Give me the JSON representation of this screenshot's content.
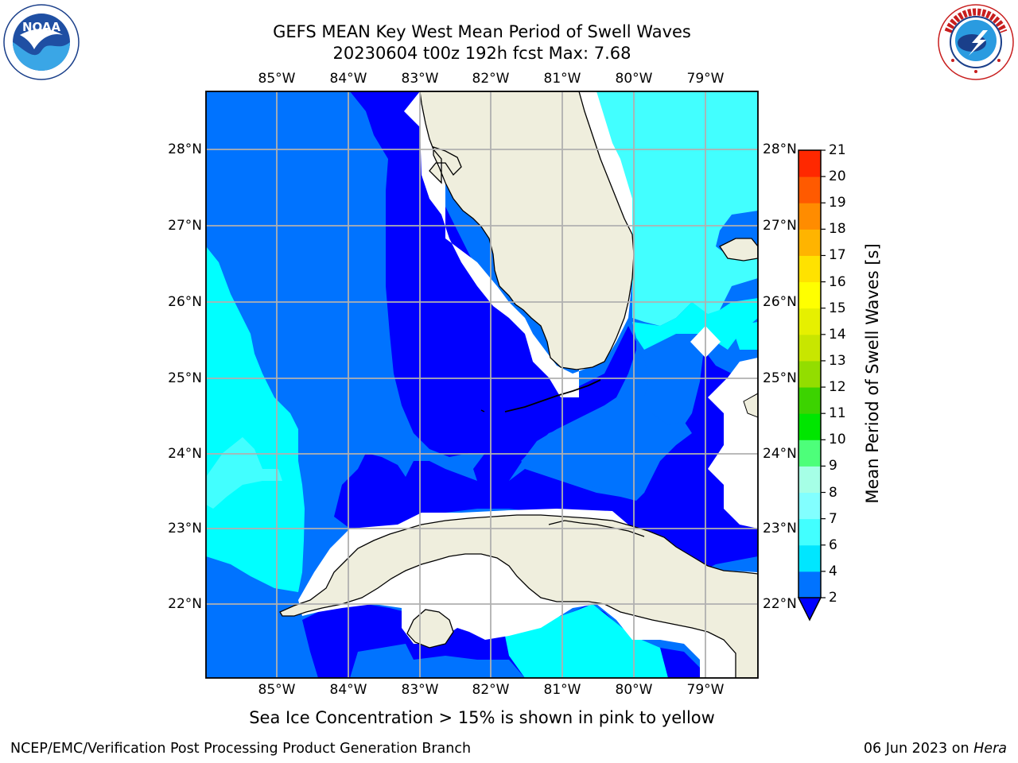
{
  "title_line1": "GEFS MEAN Key West Mean Period of Swell Waves",
  "title_line2": "20230604 t00z 192h fcst   Max: 7.68",
  "longitude_ticks": [
    "85°W",
    "84°W",
    "83°W",
    "82°W",
    "81°W",
    "80°W",
    "79°W"
  ],
  "latitude_ticks": [
    "28°N",
    "27°N",
    "26°N",
    "25°N",
    "24°N",
    "23°N",
    "22°N"
  ],
  "colorbar": {
    "label": "Mean Period of Swell Waves [s]",
    "ticks": [
      "2",
      "4",
      "6",
      "7",
      "8",
      "9",
      "10",
      "11",
      "12",
      "13",
      "14",
      "15",
      "16",
      "17",
      "18",
      "19",
      "20",
      "21"
    ],
    "colors": [
      "#0073ff",
      "#00e6ff",
      "#42ffff",
      "#82ffff",
      "#a6ffe6",
      "#4dff7a",
      "#00e600",
      "#3cd300",
      "#93dd00",
      "#c8e600",
      "#e6f000",
      "#ffff00",
      "#ffe200",
      "#ffb400",
      "#ff8c00",
      "#ff5a00",
      "#ff2800"
    ],
    "extend_below_color": "#0000ff"
  },
  "colors": {
    "sea_cyan_dark": "#0073ff",
    "sea_blue": "#0000ff",
    "sea_cyan": "#00ffff",
    "sea_cyan_light": "#42ffff",
    "land": "#efeedd",
    "no_data": "#ffffff",
    "grid": "#b0b0b0"
  },
  "logos": {
    "left": "noaa-logo",
    "right": "nws-logo"
  },
  "footer_note": "Sea Ice Concentration > 15% is shown in pink to yellow",
  "credit_left": "NCEP/EMC/Verification Post Processing Product Generation Branch",
  "credit_right_date": "06 Jun 2023 on",
  "credit_right_machine": "Hera"
}
